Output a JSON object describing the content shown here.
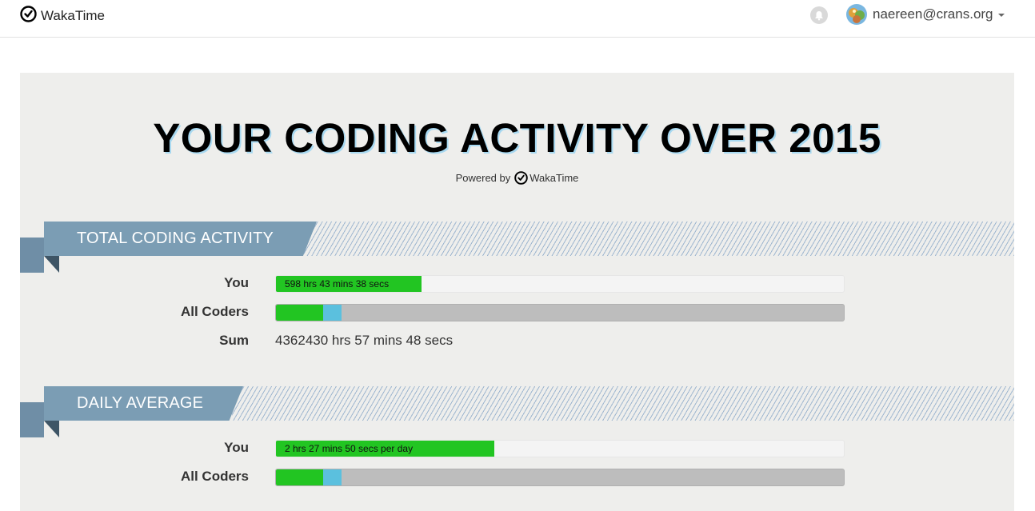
{
  "navbar": {
    "brand": "WakaTime",
    "user_email": "naereen@crans.org"
  },
  "report": {
    "title": "YOUR CODING ACTIVITY OVER 2015",
    "powered_prefix": "Powered by",
    "powered_brand": "WakaTime"
  },
  "total": {
    "heading": "TOTAL CODING ACTIVITY",
    "you_label": "You",
    "you_value": "598 hrs 43 mins 38 secs",
    "you_fraction": 0.256,
    "all_label": "All Coders",
    "all_green_fraction": 0.083,
    "all_blue_fraction": 0.032,
    "sum_label": "Sum",
    "sum_value": "4362430 hrs 57 mins 48 secs"
  },
  "daily": {
    "heading": "DAILY AVERAGE",
    "you_label": "You",
    "you_value": "2 hrs 27 mins 50 secs per day",
    "you_fraction": 0.384,
    "all_label": "All Coders",
    "all_green_fraction": 0.083,
    "all_blue_fraction": 0.032
  },
  "colors": {
    "you_bar": "#22c522",
    "all_blue": "#5bc0de",
    "all_track": "#bdbdbd",
    "ribbon": "#7b9db4"
  }
}
